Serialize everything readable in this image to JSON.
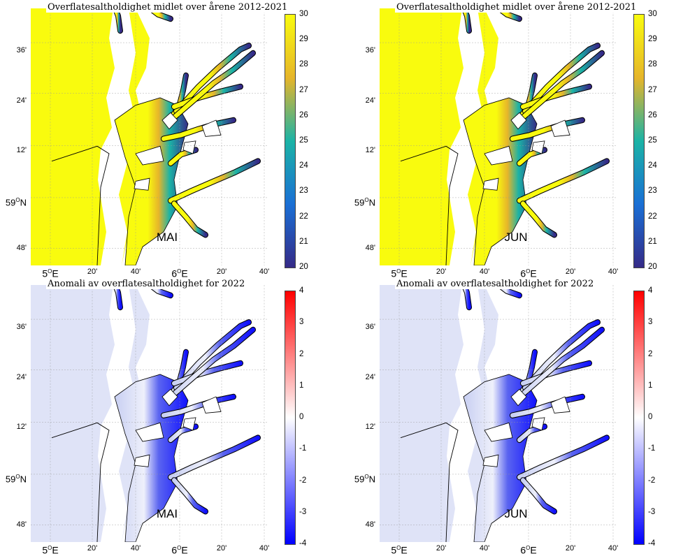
{
  "panels": [
    {
      "id": "p1",
      "title": "Overflatesaltholdighet midlet over årene 2012-2021",
      "month": "MAI",
      "kind": "mean",
      "scale": "parula"
    },
    {
      "id": "p2",
      "title": "Overflatesaltholdighet midlet over årene 2012-2021",
      "month": "JUN",
      "kind": "mean",
      "scale": "parula"
    },
    {
      "id": "p3",
      "title": "Anomali av overflatesaltholdighet for 2022",
      "month": "MAI",
      "kind": "anomaly",
      "scale": "bwr"
    },
    {
      "id": "p4",
      "title": "Anomali av overflatesaltholdighet for 2022",
      "month": "JUN",
      "kind": "anomaly",
      "scale": "bwr"
    }
  ],
  "yticks": [
    "36'",
    "24'",
    "12'",
    "59",
    "48'"
  ],
  "ytick_main_deg": "O",
  "ytick_main_suffix": "N",
  "xticks": [
    "5",
    "20'",
    "40'",
    "6",
    "20'",
    "40'"
  ],
  "xtick_deg": "O",
  "xtick_suffix": "E",
  "colorbar_mean": {
    "ticks": [
      "30",
      "29",
      "28",
      "27",
      "26",
      "25",
      "24",
      "23",
      "22",
      "21",
      "20"
    ],
    "min": 20,
    "max": 30,
    "colors": [
      "#f9fb0e",
      "#e6b52a",
      "#1bb3a6",
      "#1a6fd5",
      "#352a87"
    ]
  },
  "colorbar_anomaly": {
    "ticks": [
      "4",
      "3",
      "2",
      "1",
      "0",
      "-1",
      "-2",
      "-3",
      "-4"
    ],
    "min": -4,
    "max": 4,
    "colors": [
      "#ff0000",
      "#ffffff",
      "#0000ff"
    ]
  },
  "map_colors": {
    "sea_yellow": "#f9fb0e",
    "land": "#ffffff",
    "anom_bg": "#dfe3f7",
    "coast": "#000000"
  }
}
